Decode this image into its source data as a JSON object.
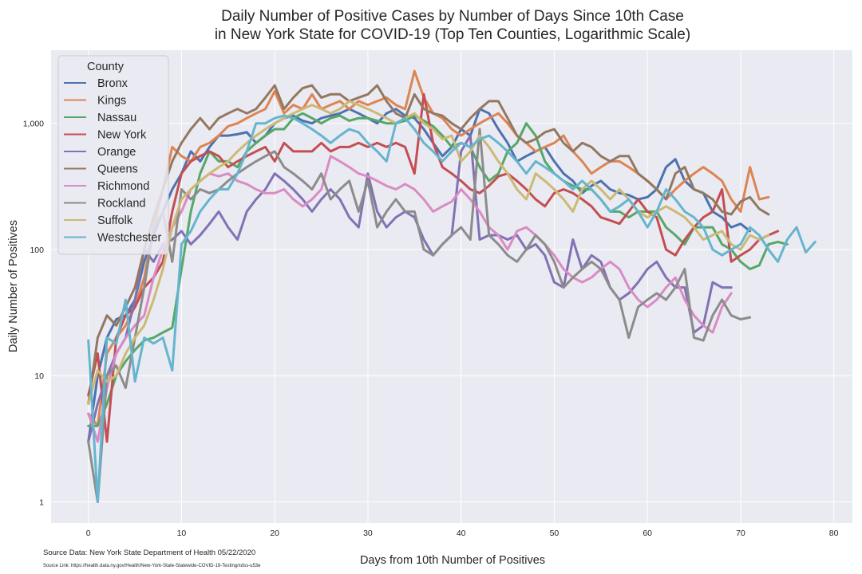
{
  "chart_data": {
    "type": "line",
    "title": [
      "Daily Number of Positive Cases by Number of Days Since 10th Case",
      "in New York State for COVID-19 (Top Ten Counties, Logarithmic Scale)"
    ],
    "xlabel": "Days from 10th Number of Positives",
    "ylabel": "Daily Number of Positives",
    "xlim": [
      -4,
      82
    ],
    "ylim": [
      0.68,
      3800
    ],
    "yscale": "log",
    "xticks": [
      0,
      10,
      20,
      30,
      40,
      50,
      60,
      70,
      80
    ],
    "yticks": [
      {
        "value": 1,
        "label": "1"
      },
      {
        "value": 10,
        "label": "10"
      },
      {
        "value": 100,
        "label": "100"
      },
      {
        "value": 1000,
        "label": "1,000"
      }
    ],
    "grid": true,
    "legend": {
      "title": "County",
      "placement": "top-left"
    },
    "background": "#eaeaf2",
    "series": [
      {
        "name": "Bronx",
        "color": "#4c72b0",
        "x_start": 0,
        "values": [
          3,
          10,
          20,
          28,
          30,
          40,
          80,
          130,
          200,
          300,
          400,
          600,
          500,
          650,
          800,
          800,
          820,
          850,
          700,
          800,
          1000,
          1100,
          1150,
          1050,
          1000,
          1100,
          1150,
          1200,
          1300,
          1200,
          1100,
          1000,
          1200,
          1300,
          1150,
          1100,
          900,
          700,
          550,
          650,
          900,
          800,
          1300,
          1200,
          900,
          700,
          500,
          550,
          600,
          650,
          500,
          400,
          350,
          280,
          320,
          350,
          300,
          280,
          270,
          250,
          260,
          300,
          450,
          520,
          350,
          300,
          280,
          200,
          180,
          150,
          160,
          140
        ]
      },
      {
        "name": "Kings",
        "color": "#dd8452",
        "x_start": 0,
        "values": [
          5,
          4,
          15,
          20,
          25,
          35,
          60,
          150,
          300,
          650,
          550,
          500,
          650,
          700,
          800,
          950,
          1000,
          1100,
          1200,
          1300,
          1800,
          1200,
          1400,
          1300,
          1700,
          1300,
          1400,
          1500,
          1300,
          1500,
          1400,
          1500,
          1600,
          1400,
          1300,
          2600,
          1600,
          1200,
          1100,
          900,
          800,
          900,
          1000,
          1100,
          1200,
          1000,
          800,
          700,
          600,
          650,
          700,
          800,
          600,
          500,
          400,
          450,
          500,
          500,
          450,
          400,
          350,
          300,
          250,
          300,
          350,
          400,
          450,
          400,
          350,
          250,
          200,
          450,
          250,
          260
        ]
      },
      {
        "name": "Nassau",
        "color": "#55a868",
        "x_start": 0,
        "values": [
          4,
          4,
          6,
          10,
          13,
          16,
          19,
          20,
          22,
          24,
          70,
          200,
          400,
          600,
          500,
          500,
          450,
          600,
          700,
          800,
          900,
          900,
          1100,
          1200,
          1100,
          1000,
          1100,
          1150,
          1050,
          1100,
          1100,
          1050,
          1000,
          1000,
          1050,
          1150,
          1050,
          950,
          800,
          650,
          700,
          650,
          450,
          350,
          400,
          600,
          700,
          1000,
          800,
          500,
          400,
          350,
          320,
          300,
          300,
          250,
          200,
          200,
          180,
          200,
          200,
          200,
          150,
          130,
          110,
          150,
          150,
          150,
          110,
          100,
          80,
          70,
          75,
          110,
          115,
          110
        ]
      },
      {
        "name": "New York",
        "color": "#c44e52",
        "x_start": 0,
        "values": [
          7,
          15,
          3,
          20,
          30,
          35,
          50,
          60,
          80,
          200,
          400,
          500,
          550,
          600,
          550,
          450,
          500,
          550,
          600,
          650,
          500,
          700,
          600,
          600,
          600,
          700,
          600,
          650,
          650,
          700,
          650,
          700,
          650,
          700,
          650,
          400,
          1700,
          700,
          450,
          400,
          350,
          300,
          280,
          320,
          380,
          400,
          350,
          300,
          250,
          220,
          280,
          300,
          280,
          250,
          220,
          180,
          170,
          160,
          200,
          250,
          200,
          180,
          100,
          90,
          120,
          150,
          180,
          200,
          300,
          80,
          90,
          100,
          120,
          130,
          140
        ]
      },
      {
        "name": "Orange",
        "color": "#8172b3",
        "x_start": 0,
        "values": [
          3,
          6,
          10,
          15,
          20,
          40,
          100,
          80,
          110,
          120,
          140,
          110,
          130,
          160,
          200,
          150,
          120,
          200,
          250,
          300,
          400,
          350,
          300,
          250,
          200,
          250,
          300,
          250,
          180,
          150,
          400,
          200,
          150,
          180,
          200,
          180,
          120,
          90,
          110,
          130,
          600,
          800,
          120,
          130,
          130,
          120,
          130,
          100,
          110,
          90,
          55,
          50,
          120,
          70,
          90,
          80,
          50,
          40,
          45,
          55,
          70,
          80,
          60,
          50,
          50,
          22,
          25,
          55,
          50,
          50
        ]
      },
      {
        "name": "Queens",
        "color": "#937860",
        "x_start": 0,
        "values": [
          6,
          20,
          30,
          25,
          35,
          50,
          100,
          180,
          300,
          500,
          700,
          900,
          1100,
          900,
          1100,
          1200,
          1300,
          1200,
          1300,
          1600,
          2000,
          1300,
          1600,
          1900,
          2000,
          1600,
          1700,
          1700,
          1500,
          1600,
          1700,
          2000,
          1500,
          1200,
          1100,
          1700,
          1300,
          1200,
          1150,
          1000,
          900,
          1100,
          1300,
          1500,
          1500,
          1100,
          800,
          700,
          750,
          850,
          900,
          700,
          600,
          700,
          650,
          550,
          500,
          550,
          550,
          400,
          350,
          300,
          250,
          400,
          450,
          300,
          280,
          250,
          200,
          190,
          240,
          260,
          210,
          190
        ]
      },
      {
        "name": "Richmond",
        "color": "#da8bc3",
        "x_start": 0,
        "values": [
          5,
          3,
          8,
          15,
          20,
          25,
          30,
          60,
          100,
          150,
          200,
          300,
          350,
          400,
          380,
          400,
          350,
          330,
          300,
          280,
          280,
          300,
          250,
          220,
          250,
          300,
          550,
          500,
          450,
          400,
          380,
          350,
          320,
          300,
          330,
          300,
          250,
          200,
          220,
          240,
          300,
          250,
          200,
          150,
          130,
          100,
          140,
          150,
          130,
          110,
          90,
          70,
          60,
          55,
          60,
          70,
          80,
          70,
          50,
          40,
          35,
          40,
          50,
          60,
          40,
          30,
          25,
          22,
          35,
          45
        ]
      },
      {
        "name": "Rockland",
        "color": "#8c8c8c",
        "x_start": 0,
        "values": [
          3,
          1,
          10,
          12,
          8,
          20,
          50,
          150,
          200,
          80,
          300,
          250,
          300,
          280,
          300,
          350,
          400,
          450,
          500,
          550,
          600,
          450,
          400,
          350,
          300,
          400,
          250,
          300,
          350,
          200,
          350,
          150,
          200,
          250,
          200,
          200,
          100,
          90,
          110,
          130,
          150,
          120,
          900,
          130,
          110,
          90,
          80,
          100,
          130,
          110,
          80,
          50,
          60,
          70,
          80,
          70,
          50,
          40,
          20,
          35,
          40,
          45,
          40,
          50,
          70,
          20,
          19,
          30,
          40,
          30,
          28,
          29
        ]
      },
      {
        "name": "Suffolk",
        "color": "#ccb974",
        "x_start": 0,
        "values": [
          6,
          11,
          9,
          10,
          15,
          20,
          25,
          40,
          70,
          150,
          250,
          300,
          350,
          400,
          450,
          500,
          600,
          700,
          800,
          900,
          1000,
          1100,
          1200,
          1300,
          1400,
          1300,
          1200,
          1300,
          1500,
          1400,
          1300,
          1200,
          1100,
          1000,
          1100,
          1200,
          1000,
          900,
          750,
          800,
          500,
          600,
          800,
          650,
          500,
          400,
          300,
          250,
          400,
          350,
          300,
          250,
          200,
          300,
          350,
          300,
          250,
          300,
          250,
          200,
          180,
          200,
          220,
          200,
          180,
          150,
          120,
          130,
          140,
          110,
          100,
          130,
          120,
          130
        ]
      },
      {
        "name": "Westchester",
        "color": "#64b5cd",
        "x_start": 0,
        "values": [
          19,
          1,
          20,
          18,
          40,
          9,
          20,
          18,
          20,
          11,
          110,
          140,
          200,
          250,
          300,
          300,
          400,
          600,
          1000,
          1000,
          1100,
          1150,
          1100,
          1000,
          900,
          800,
          700,
          800,
          900,
          850,
          700,
          600,
          500,
          1000,
          1100,
          900,
          700,
          600,
          500,
          600,
          700,
          650,
          750,
          800,
          700,
          600,
          500,
          400,
          500,
          450,
          400,
          350,
          300,
          350,
          300,
          250,
          200,
          220,
          250,
          200,
          150,
          200,
          300,
          250,
          200,
          180,
          150,
          100,
          90,
          100,
          110,
          150,
          130,
          100,
          80,
          120,
          150,
          95,
          115
        ]
      }
    ]
  },
  "source": {
    "data": "Source Data: New York State Department of Health 05/22/2020",
    "link": "Source Link: https://health.data.ny.gov/Health/New-York-State-Statewide-COVID-19-Testing/xdss-u53e"
  }
}
